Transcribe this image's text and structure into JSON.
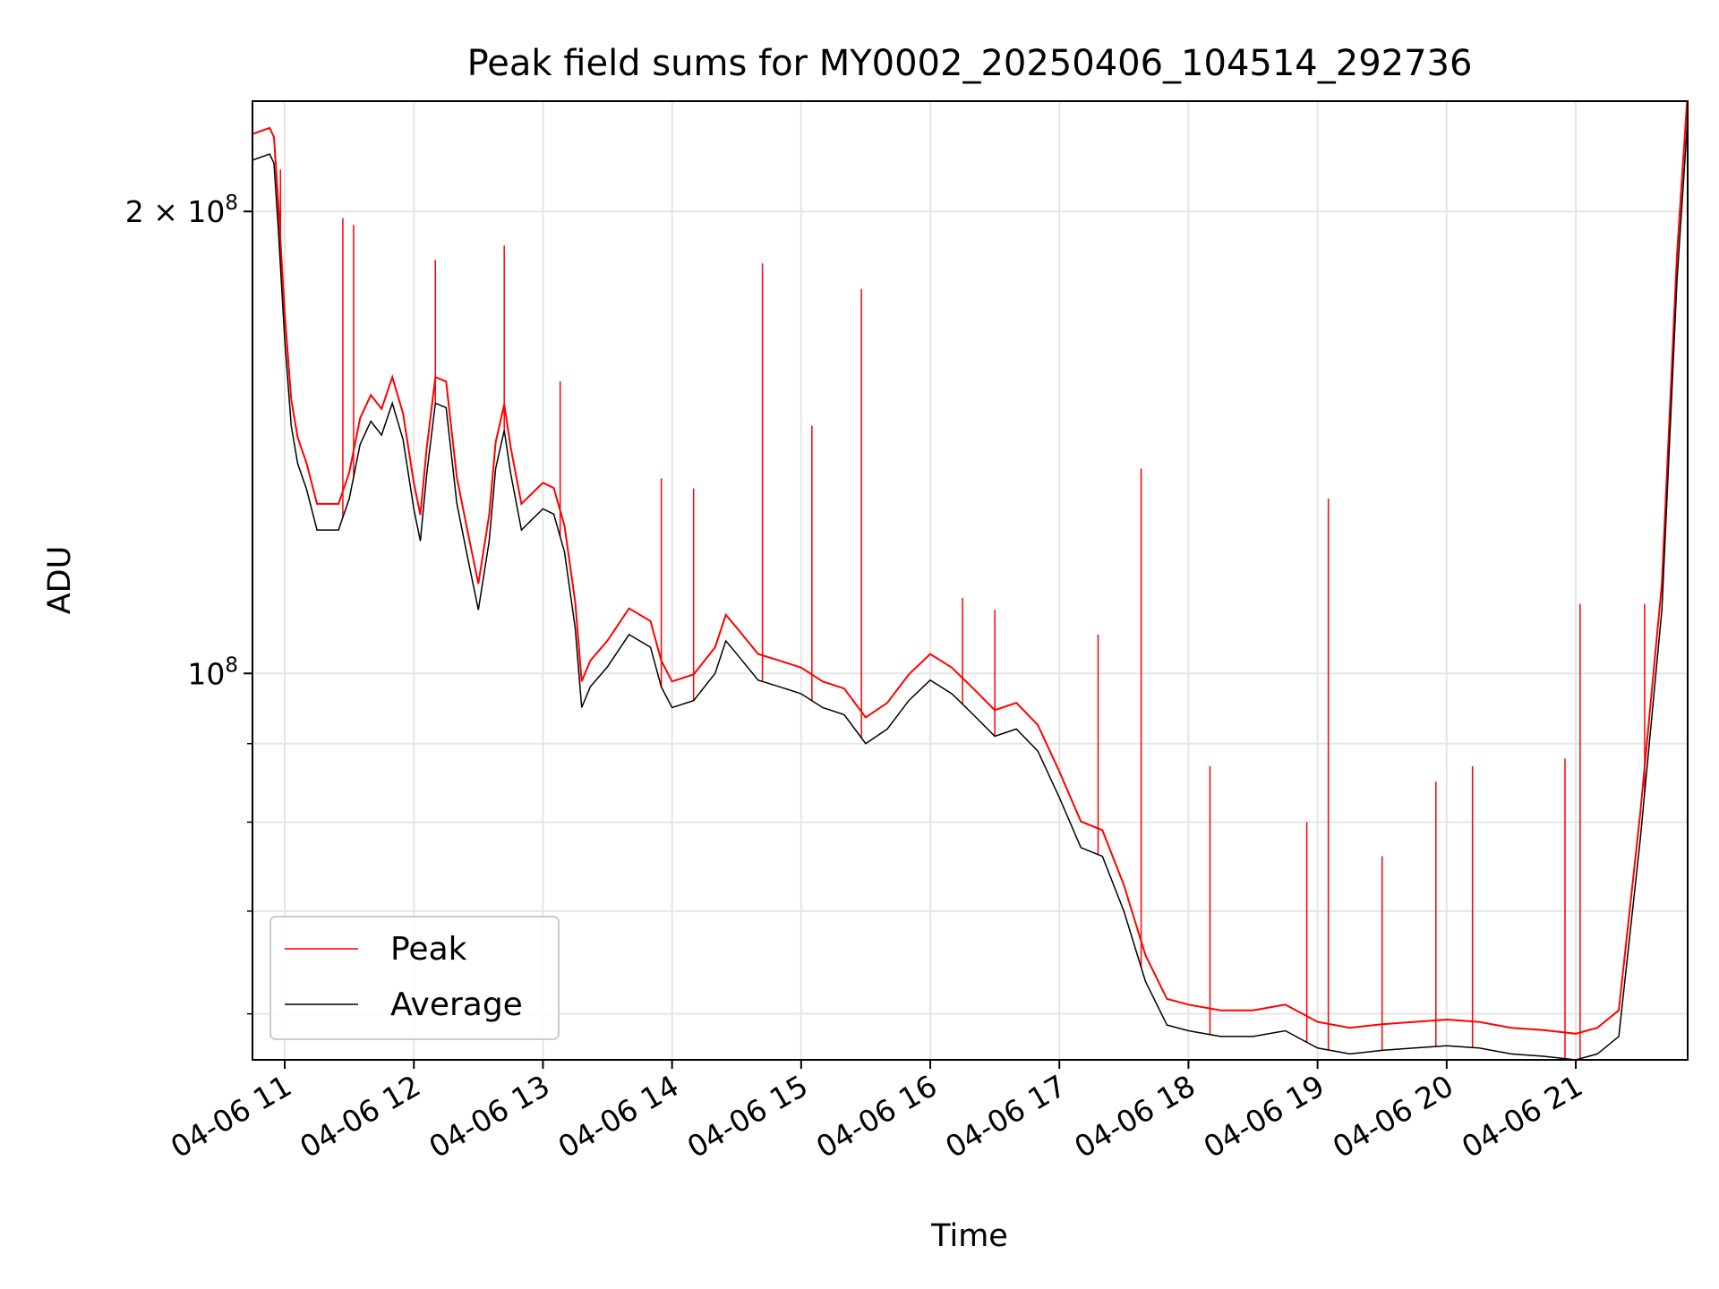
{
  "chart_data": {
    "type": "line",
    "title": "Peak field sums for MY0002_20250406_104514_292736",
    "xlabel": "Time",
    "ylabel": "ADU",
    "y_scale": "log",
    "grid": true,
    "legend_position": "lower-left",
    "xlim": [
      "2025-04-06 10:45",
      "2025-04-06 21:52"
    ],
    "ylim": [
      56000000,
      236000000
    ],
    "x_ticks": [
      {
        "value": "2025-04-06 11:00",
        "label": "04-06 11"
      },
      {
        "value": "2025-04-06 12:00",
        "label": "04-06 12"
      },
      {
        "value": "2025-04-06 13:00",
        "label": "04-06 13"
      },
      {
        "value": "2025-04-06 14:00",
        "label": "04-06 14"
      },
      {
        "value": "2025-04-06 15:00",
        "label": "04-06 15"
      },
      {
        "value": "2025-04-06 16:00",
        "label": "04-06 16"
      },
      {
        "value": "2025-04-06 17:00",
        "label": "04-06 17"
      },
      {
        "value": "2025-04-06 18:00",
        "label": "04-06 18"
      },
      {
        "value": "2025-04-06 19:00",
        "label": "04-06 19"
      },
      {
        "value": "2025-04-06 20:00",
        "label": "04-06 20"
      },
      {
        "value": "2025-04-06 21:00",
        "label": "04-06 21"
      }
    ],
    "y_ticks": [
      {
        "value": 100000000,
        "mantissa": "",
        "base": "10",
        "exponent": "8"
      },
      {
        "value": 200000000,
        "mantissa": "2 × ",
        "base": "10",
        "exponent": "8"
      }
    ],
    "y_minor_ticks": [
      60000000,
      70000000,
      80000000,
      90000000
    ],
    "series": [
      {
        "name": "Average",
        "color": "#000000",
        "x": [
          "2025-04-06 10:45",
          "2025-04-06 10:53",
          "2025-04-06 10:55",
          "2025-04-06 10:57",
          "2025-04-06 11:00",
          "2025-04-06 11:03",
          "2025-04-06 11:06",
          "2025-04-06 11:10",
          "2025-04-06 11:15",
          "2025-04-06 11:20",
          "2025-04-06 11:25",
          "2025-04-06 11:30",
          "2025-04-06 11:35",
          "2025-04-06 11:40",
          "2025-04-06 11:45",
          "2025-04-06 11:50",
          "2025-04-06 11:55",
          "2025-04-06 12:00",
          "2025-04-06 12:03",
          "2025-04-06 12:06",
          "2025-04-06 12:10",
          "2025-04-06 12:15",
          "2025-04-06 12:20",
          "2025-04-06 12:25",
          "2025-04-06 12:30",
          "2025-04-06 12:35",
          "2025-04-06 12:38",
          "2025-04-06 12:42",
          "2025-04-06 12:45",
          "2025-04-06 12:50",
          "2025-04-06 12:55",
          "2025-04-06 13:00",
          "2025-04-06 13:05",
          "2025-04-06 13:10",
          "2025-04-06 13:15",
          "2025-04-06 13:18",
          "2025-04-06 13:22",
          "2025-04-06 13:30",
          "2025-04-06 13:40",
          "2025-04-06 13:50",
          "2025-04-06 13:55",
          "2025-04-06 14:00",
          "2025-04-06 14:10",
          "2025-04-06 14:20",
          "2025-04-06 14:25",
          "2025-04-06 14:30",
          "2025-04-06 14:40",
          "2025-04-06 14:50",
          "2025-04-06 15:00",
          "2025-04-06 15:10",
          "2025-04-06 15:20",
          "2025-04-06 15:30",
          "2025-04-06 15:40",
          "2025-04-06 15:50",
          "2025-04-06 16:00",
          "2025-04-06 16:10",
          "2025-04-06 16:20",
          "2025-04-06 16:30",
          "2025-04-06 16:40",
          "2025-04-06 16:50",
          "2025-04-06 17:00",
          "2025-04-06 17:10",
          "2025-04-06 17:20",
          "2025-04-06 17:30",
          "2025-04-06 17:40",
          "2025-04-06 17:50",
          "2025-04-06 18:00",
          "2025-04-06 18:15",
          "2025-04-06 18:30",
          "2025-04-06 18:45",
          "2025-04-06 19:00",
          "2025-04-06 19:15",
          "2025-04-06 19:30",
          "2025-04-06 19:45",
          "2025-04-06 20:00",
          "2025-04-06 20:15",
          "2025-04-06 20:30",
          "2025-04-06 20:45",
          "2025-04-06 21:00",
          "2025-04-06 21:10",
          "2025-04-06 21:20",
          "2025-04-06 21:30",
          "2025-04-06 21:40",
          "2025-04-06 21:47",
          "2025-04-06 21:52"
        ],
        "y": [
          216000000,
          218000000,
          215000000,
          195000000,
          165000000,
          145000000,
          137000000,
          132000000,
          124000000,
          124000000,
          124000000,
          130000000,
          141000000,
          146000000,
          143000000,
          150000000,
          142000000,
          128000000,
          122000000,
          135000000,
          150000000,
          149000000,
          129000000,
          119000000,
          110000000,
          122000000,
          136000000,
          144000000,
          135000000,
          124000000,
          126000000,
          128000000,
          127000000,
          120000000,
          107000000,
          95000000,
          98000000,
          101000000,
          106000000,
          104000000,
          98000000,
          95000000,
          96000000,
          100000000,
          105000000,
          103000000,
          99000000,
          98000000,
          97000000,
          95000000,
          94000000,
          90000000,
          92000000,
          96000000,
          99000000,
          97000000,
          94000000,
          91000000,
          92000000,
          89000000,
          83000000,
          77000000,
          76000000,
          70000000,
          63000000,
          59000000,
          58500000,
          58000000,
          58000000,
          58500000,
          57000000,
          56500000,
          56800000,
          57000000,
          57200000,
          57000000,
          56500000,
          56300000,
          56000000,
          56500000,
          58000000,
          78000000,
          110000000,
          180000000,
          230000000
        ]
      },
      {
        "name": "Peak",
        "color": "#ff0000",
        "x": [
          "2025-04-06 10:58",
          "2025-04-06 11:27",
          "2025-04-06 11:32",
          "2025-04-06 12:10",
          "2025-04-06 12:42",
          "2025-04-06 13:08",
          "2025-04-06 13:55",
          "2025-04-06 14:10",
          "2025-04-06 14:42",
          "2025-04-06 15:05",
          "2025-04-06 15:28",
          "2025-04-06 16:15",
          "2025-04-06 16:30",
          "2025-04-06 17:18",
          "2025-04-06 17:38",
          "2025-04-06 18:10",
          "2025-04-06 18:55",
          "2025-04-06 19:05",
          "2025-04-06 19:30",
          "2025-04-06 19:55",
          "2025-04-06 20:12",
          "2025-04-06 20:55",
          "2025-04-06 21:02",
          "2025-04-06 21:32"
        ],
        "y": [
          213000000,
          198000000,
          196000000,
          186000000,
          190000000,
          155000000,
          134000000,
          132000000,
          185000000,
          145000000,
          178000000,
          112000000,
          110000000,
          106000000,
          136000000,
          87000000,
          80000000,
          130000000,
          76000000,
          85000000,
          87000000,
          88000000,
          111000000,
          111000000
        ]
      }
    ]
  }
}
